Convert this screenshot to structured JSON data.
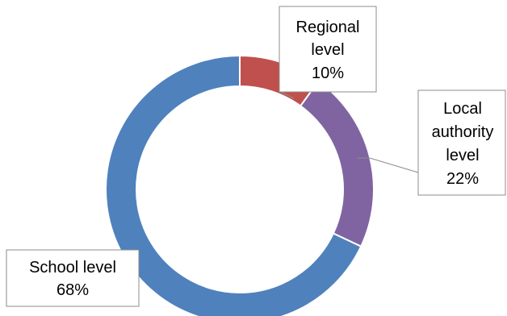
{
  "chart_data": {
    "type": "pie",
    "style": "donut",
    "title": "",
    "slices": [
      {
        "name": "Regional level",
        "label_lines": [
          "Regional",
          "level"
        ],
        "value": 10,
        "display": "10%",
        "color": "#c0504d"
      },
      {
        "name": "Local authority level",
        "label_lines": [
          "Local",
          "authority",
          "level"
        ],
        "value": 22,
        "display": "22%",
        "color": "#8064a2"
      },
      {
        "name": "School level",
        "label_lines": [
          "School level"
        ],
        "value": 68,
        "display": "68%",
        "color": "#4f81bd"
      }
    ],
    "legend": "none",
    "data_labels": "callouts"
  }
}
